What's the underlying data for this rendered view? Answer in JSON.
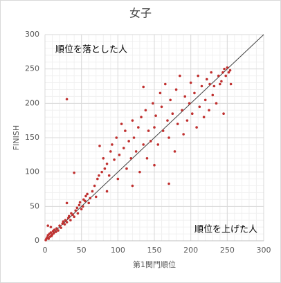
{
  "chart_data": {
    "type": "scatter",
    "title": "女子",
    "x_label": "第1関門順位",
    "y_label": "FINISH",
    "annotations": [
      "順位を落とした人",
      "順位を上げた人"
    ],
    "color": "#c0302f",
    "grid": true,
    "minor_grid": true,
    "diagonal": true,
    "xlim": [
      0,
      300
    ],
    "ylim": [
      0,
      300
    ],
    "xticks": [
      0,
      50,
      100,
      150,
      200,
      250,
      300
    ],
    "yticks": [
      0,
      50,
      100,
      150,
      200,
      250,
      300
    ],
    "series": [
      {
        "name": "女子",
        "x": [
          1,
          2,
          3,
          4,
          5,
          6,
          7,
          8,
          9,
          10,
          11,
          12,
          13,
          15,
          16,
          18,
          20,
          22,
          24,
          25,
          27,
          28,
          30,
          30,
          32,
          33,
          35,
          36,
          38,
          40,
          40,
          42,
          44,
          45,
          47,
          48,
          50,
          52,
          53,
          55,
          56,
          58,
          60,
          62,
          30,
          4,
          8,
          65,
          68,
          70,
          72,
          74,
          75,
          78,
          80,
          82,
          85,
          85,
          88,
          90,
          92,
          95,
          98,
          100,
          102,
          105,
          108,
          110,
          112,
          115,
          118,
          120,
          120,
          122,
          125,
          128,
          130,
          132,
          135,
          135,
          138,
          140,
          142,
          145,
          148,
          150,
          150,
          152,
          155,
          158,
          160,
          162,
          165,
          168,
          170,
          172,
          175,
          178,
          180,
          182,
          185,
          188,
          190,
          192,
          195,
          198,
          200,
          202,
          205,
          208,
          210,
          212,
          215,
          218,
          220,
          222,
          225,
          228,
          230,
          232,
          235,
          238,
          240,
          242,
          244,
          246,
          248,
          250,
          252,
          254,
          255,
          226,
          170,
          245
        ],
        "values": [
          1,
          3,
          5,
          8,
          3,
          10,
          6,
          12,
          7,
          9,
          14,
          11,
          16,
          13,
          18,
          15,
          22,
          19,
          25,
          28,
          24,
          30,
          27,
          55,
          33,
          36,
          30,
          40,
          38,
          35,
          99,
          44,
          48,
          40,
          52,
          56,
          46,
          50,
          60,
          58,
          65,
          68,
          55,
          62,
          206,
          22,
          20,
          72,
          80,
          64,
          90,
          95,
          138,
          100,
          120,
          105,
          112,
          72,
          95,
          130,
          140,
          118,
          150,
          90,
          125,
          170,
          135,
          160,
          105,
          145,
          120,
          175,
          80,
          150,
          130,
          165,
          100,
          180,
          224,
          140,
          190,
          120,
          160,
          145,
          200,
          165,
          110,
          182,
          140,
          215,
          195,
          160,
          228,
          175,
          150,
          205,
          185,
          130,
          220,
          170,
          240,
          190,
          155,
          210,
          175,
          200,
          230,
          185,
          215,
          165,
          240,
          195,
          225,
          180,
          205,
          235,
          190,
          245,
          212,
          225,
          200,
          240,
          228,
          232,
          245,
          250,
          240,
          252,
          245,
          248,
          228,
          228,
          83,
          185
        ]
      }
    ]
  }
}
